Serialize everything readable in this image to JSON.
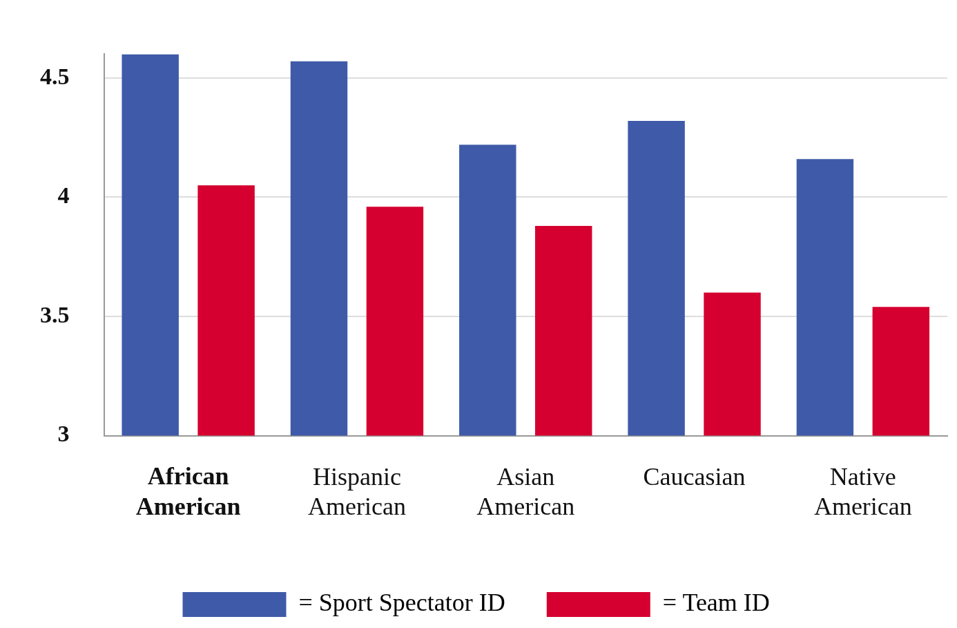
{
  "chart_data": {
    "type": "bar",
    "categories": [
      "African American",
      "Hispanic American",
      "Asian American",
      "Caucasian",
      "Native American"
    ],
    "series": [
      {
        "name": "= Sport Spectator ID",
        "color": "#3f5aa8",
        "values": [
          4.6,
          4.57,
          4.22,
          4.32,
          4.16
        ]
      },
      {
        "name": "= Team ID",
        "color": "#d5002f",
        "values": [
          4.05,
          3.96,
          3.88,
          3.6,
          3.54
        ]
      }
    ],
    "ylim": [
      3,
      4.6
    ],
    "yticks": [
      3,
      3.5,
      4,
      4.5
    ],
    "grid": "y",
    "legend": "bottom"
  }
}
